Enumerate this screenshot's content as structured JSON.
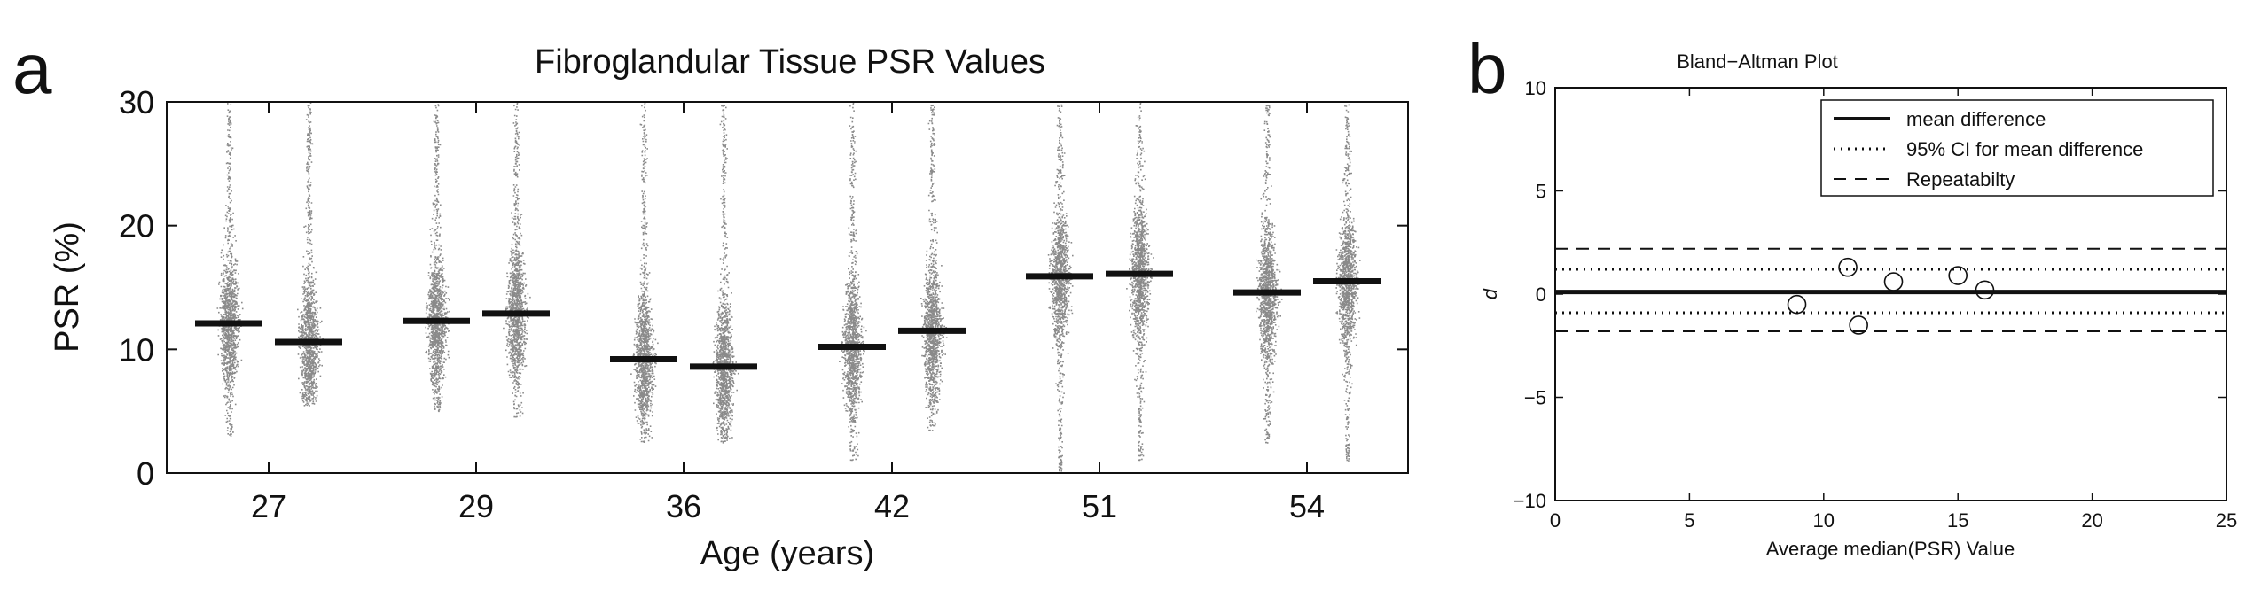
{
  "panels": {
    "a_letter": "a",
    "b_letter": "b"
  },
  "colors": {
    "points": "#8a8a8a",
    "ink": "#111111",
    "background": "#ffffff"
  },
  "chart_data": [
    {
      "type": "scatter",
      "title": "Fibroglandular Tissue PSR Values",
      "xlabel": "Age (years)",
      "ylabel": "PSR (%)",
      "ylim": [
        0,
        30
      ],
      "yticks": [
        0,
        10,
        20,
        30
      ],
      "categories": [
        "27",
        "29",
        "36",
        "42",
        "51",
        "54"
      ],
      "scans_per_category": 2,
      "medians": [
        [
          12.1,
          10.6
        ],
        [
          12.3,
          12.9
        ],
        [
          9.2,
          8.6
        ],
        [
          10.2,
          11.5
        ],
        [
          15.9,
          16.1
        ],
        [
          14.6,
          15.5
        ]
      ],
      "point_ranges": [
        [
          [
            3,
            30
          ],
          [
            5.5,
            30
          ]
        ],
        [
          [
            5,
            30
          ],
          [
            4.5,
            30
          ]
        ],
        [
          [
            2.5,
            30
          ],
          [
            2.5,
            30
          ]
        ],
        [
          [
            1,
            30
          ],
          [
            3.5,
            30
          ]
        ],
        [
          [
            0,
            30
          ],
          [
            1,
            30
          ]
        ],
        [
          [
            2.5,
            30
          ],
          [
            1,
            30
          ]
        ]
      ],
      "grid": false
    },
    {
      "type": "scatter",
      "title": "Bland−Altman Plot",
      "xlabel": "Average median(PSR) Value",
      "ylabel": "d",
      "xlim": [
        0,
        25
      ],
      "ylim": [
        -10,
        10
      ],
      "xticks": [
        0,
        5,
        10,
        15,
        20,
        25
      ],
      "yticks": [
        -10,
        -5,
        0,
        5,
        10
      ],
      "points": [
        {
          "x": 9.0,
          "y": -0.5
        },
        {
          "x": 10.9,
          "y": 1.3
        },
        {
          "x": 11.3,
          "y": -1.5
        },
        {
          "x": 12.6,
          "y": 0.6
        },
        {
          "x": 15.0,
          "y": 0.9
        },
        {
          "x": 16.0,
          "y": 0.2
        }
      ],
      "lines": {
        "mean_difference": 0.1,
        "ci_upper": 1.2,
        "ci_lower": -0.9,
        "repeatability_upper": 2.2,
        "repeatability_lower": -1.8
      },
      "legend": [
        "mean difference",
        "95% CI for mean difference",
        "Repeatabilty"
      ],
      "legend_position": "top-right",
      "grid": false
    }
  ]
}
